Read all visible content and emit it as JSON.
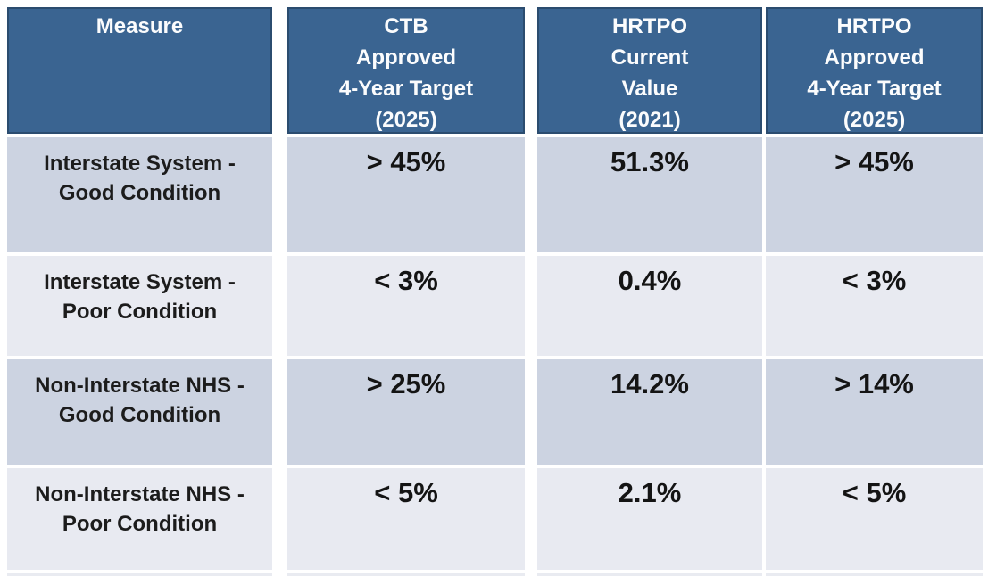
{
  "colors": {
    "header_fill": "#3A6491",
    "header_border": "#2B4C6F",
    "header_text": "#FBFCFD",
    "row_dark": "#CCD3E1",
    "row_light": "#E8EAF1",
    "body_text": "#1C1C1C",
    "background": "#FFFFFF"
  },
  "table": {
    "headers": {
      "measure": [
        "Measure"
      ],
      "ctb_target": [
        "CTB",
        "Approved",
        "4-Year Target",
        "(2025)"
      ],
      "hrtpo_current": [
        "HRTPO",
        "Current",
        "Value",
        "(2021)"
      ],
      "hrtpo_target": [
        "HRTPO",
        "Approved",
        "4-Year Target",
        "(2025)"
      ]
    },
    "rows": [
      {
        "measure": [
          "Interstate System -",
          "Good Condition"
        ],
        "ctb_target": "> 45%",
        "hrtpo_current": "51.3%",
        "hrtpo_target": "> 45%"
      },
      {
        "measure": [
          "Interstate System -",
          "Poor Condition"
        ],
        "ctb_target": "< 3%",
        "hrtpo_current": "0.4%",
        "hrtpo_target": "< 3%"
      },
      {
        "measure": [
          "Non-Interstate NHS -",
          "Good Condition"
        ],
        "ctb_target": "> 25%",
        "hrtpo_current": "14.2%",
        "hrtpo_target": "> 14%"
      },
      {
        "measure": [
          "Non-Interstate NHS -",
          "Poor Condition"
        ],
        "ctb_target": "< 5%",
        "hrtpo_current": "2.1%",
        "hrtpo_target": "< 5%"
      }
    ]
  },
  "chart_data": {
    "type": "table",
    "columns": [
      "Measure",
      "CTB Approved 4-Year Target (2025)",
      "HRTPO Current Value (2021)",
      "HRTPO Approved 4-Year Target (2025)"
    ],
    "rows": [
      [
        "Interstate System - Good Condition",
        "> 45%",
        "51.3%",
        "> 45%"
      ],
      [
        "Interstate System - Poor Condition",
        "< 3%",
        "0.4%",
        "< 3%"
      ],
      [
        "Non-Interstate NHS - Good Condition",
        "> 25%",
        "14.2%",
        "> 14%"
      ],
      [
        "Non-Interstate NHS - Poor Condition",
        "< 5%",
        "2.1%",
        "< 5%"
      ]
    ]
  }
}
